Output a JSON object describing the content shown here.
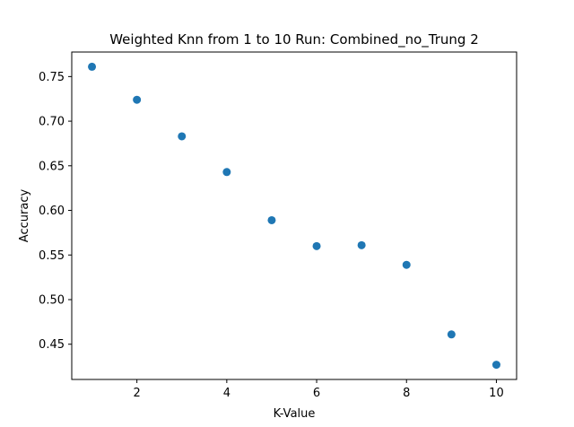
{
  "chart_data": {
    "type": "scatter",
    "title": "Weighted Knn from 1 to 10 Run: Combined_no_Trung 2",
    "xlabel": "K-Value",
    "ylabel": "Accuracy",
    "xlim": [
      0.55,
      10.45
    ],
    "ylim": [
      0.4105,
      0.7775
    ],
    "xticks": [
      2,
      4,
      6,
      8,
      10
    ],
    "yticks": [
      0.45,
      0.5,
      0.55,
      0.6,
      0.65,
      0.7,
      0.75
    ],
    "xtick_labels": [
      "2",
      "4",
      "6",
      "8",
      "10"
    ],
    "ytick_labels": [
      "0.45",
      "0.50",
      "0.55",
      "0.60",
      "0.65",
      "0.70",
      "0.75"
    ],
    "grid": false,
    "color": "#1f77b4",
    "series": [
      {
        "x": [
          1,
          2,
          3,
          4,
          5,
          6,
          7,
          8,
          9,
          10
        ],
        "y": [
          0.761,
          0.724,
          0.683,
          0.643,
          0.589,
          0.56,
          0.561,
          0.539,
          0.461,
          0.427
        ]
      }
    ]
  }
}
